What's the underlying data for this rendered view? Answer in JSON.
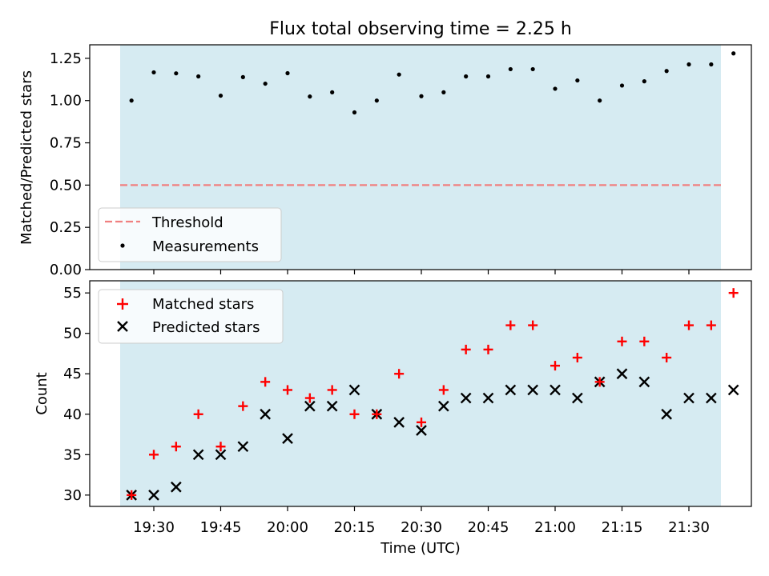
{
  "title": "Flux total observing time = 2.25 h",
  "colors": {
    "span": "#add8e6",
    "threshold": "#f08080",
    "matched": "#ff0000",
    "predicted": "#000000",
    "measurement": "#000000"
  },
  "chart_data": [
    {
      "type": "scatter",
      "ylabel": "Matched/Predicted stars",
      "ylim": [
        0,
        1.33
      ],
      "yticks": [
        "0.00",
        "0.25",
        "0.50",
        "0.75",
        "1.00",
        "1.25"
      ],
      "grid": false,
      "legend_position": "lower-left",
      "shaded_span": [
        "19:25",
        "21:37"
      ],
      "threshold": {
        "name": "Threshold",
        "value": 0.5,
        "x": [
          "19:25",
          "21:37"
        ]
      },
      "series": [
        {
          "name": "Measurements",
          "x": [
            "19:25",
            "19:30",
            "19:35",
            "19:40",
            "19:45",
            "19:50",
            "19:55",
            "20:00",
            "20:05",
            "20:10",
            "20:15",
            "20:20",
            "20:25",
            "20:30",
            "20:35",
            "20:40",
            "20:45",
            "20:50",
            "20:55",
            "21:00",
            "21:05",
            "21:10",
            "21:15",
            "21:20",
            "21:25",
            "21:30",
            "21:35",
            "21:40"
          ],
          "values": [
            1.0,
            1.167,
            1.161,
            1.143,
            1.029,
            1.139,
            1.1,
            1.162,
            1.024,
            1.049,
            0.93,
            1.0,
            1.154,
            1.026,
            1.049,
            1.143,
            1.143,
            1.186,
            1.186,
            1.07,
            1.119,
            1.0,
            1.089,
            1.114,
            1.175,
            1.214,
            1.214,
            1.279
          ]
        }
      ]
    },
    {
      "type": "scatter",
      "xlabel": "Time (UTC)",
      "ylabel": "Count",
      "ylim": [
        28.6,
        56.5
      ],
      "yticks": [
        "30",
        "35",
        "40",
        "45",
        "50",
        "55"
      ],
      "xticks": [
        "19:30",
        "19:45",
        "20:00",
        "20:15",
        "20:30",
        "20:45",
        "21:00",
        "21:15",
        "21:30"
      ],
      "grid": false,
      "legend_position": "upper-left",
      "shaded_span": [
        "19:25",
        "21:37"
      ],
      "series": [
        {
          "name": "Matched stars",
          "x": [
            "19:25",
            "19:30",
            "19:35",
            "19:40",
            "19:45",
            "19:50",
            "19:55",
            "20:00",
            "20:05",
            "20:10",
            "20:15",
            "20:20",
            "20:25",
            "20:30",
            "20:35",
            "20:40",
            "20:45",
            "20:50",
            "20:55",
            "21:00",
            "21:05",
            "21:10",
            "21:15",
            "21:20",
            "21:25",
            "21:30",
            "21:35",
            "21:40"
          ],
          "values": [
            30,
            35,
            36,
            40,
            36,
            41,
            44,
            43,
            42,
            43,
            40,
            40,
            45,
            39,
            43,
            48,
            48,
            51,
            51,
            46,
            47,
            44,
            49,
            49,
            47,
            51,
            51,
            55
          ]
        },
        {
          "name": "Predicted stars",
          "x": [
            "19:25",
            "19:30",
            "19:35",
            "19:40",
            "19:45",
            "19:50",
            "19:55",
            "20:00",
            "20:05",
            "20:10",
            "20:15",
            "20:20",
            "20:25",
            "20:30",
            "20:35",
            "20:40",
            "20:45",
            "20:50",
            "20:55",
            "21:00",
            "21:05",
            "21:10",
            "21:15",
            "21:20",
            "21:25",
            "21:30",
            "21:35",
            "21:40"
          ],
          "values": [
            30,
            30,
            31,
            35,
            35,
            36,
            40,
            37,
            41,
            41,
            43,
            40,
            39,
            38,
            41,
            42,
            42,
            43,
            43,
            43,
            42,
            44,
            45,
            44,
            40,
            42,
            42,
            43
          ]
        }
      ]
    }
  ]
}
